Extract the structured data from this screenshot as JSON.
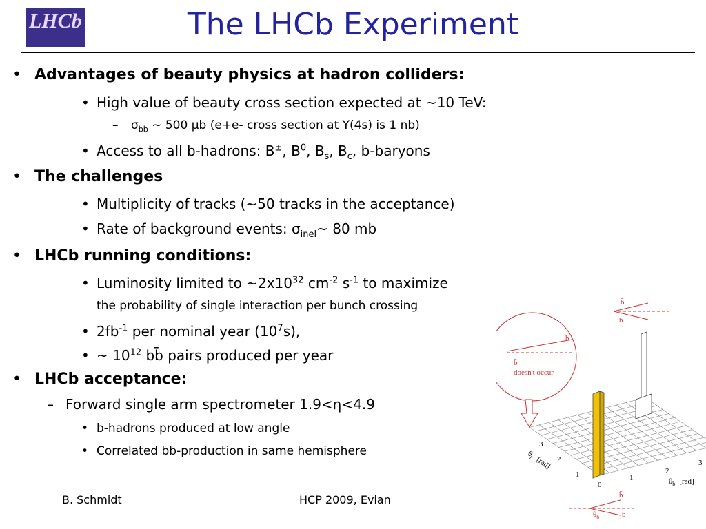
{
  "logo": "LHCb",
  "title": "The LHCb Experiment",
  "items": [
    {
      "level": 0,
      "marker": "•",
      "runs": [
        "Advantages of beauty physics at hadron colliders:"
      ]
    },
    {
      "level": 1,
      "marker": "•",
      "runs": [
        "High value of beauty cross section expected at ~10 TeV:"
      ]
    },
    {
      "level": 2,
      "marker": "–",
      "runs": [
        "σ",
        {
          "sub": "bb"
        },
        " ~ 500 μb (e+e- cross section at Υ(4s) is 1 nb)"
      ]
    },
    {
      "level": 1,
      "marker": "•",
      "runs": [
        "Access to all b-hadrons: ",
        "B",
        {
          "sup": "±"
        },
        ", B",
        {
          "sup": "0"
        },
        ", B",
        {
          "sub": "s"
        },
        ", B",
        {
          "sub": "c"
        },
        ", b-baryons"
      ]
    },
    {
      "level": 0,
      "marker": "•",
      "runs": [
        "The challenges"
      ]
    },
    {
      "level": 1,
      "marker": "•",
      "runs": [
        "Multiplicity of tracks (~50 tracks in the acceptance)"
      ]
    },
    {
      "level": 1,
      "marker": "•",
      "runs": [
        "Rate of background events: σ",
        {
          "sub": "inel"
        },
        "~ 80 mb"
      ]
    },
    {
      "level": 0,
      "marker": "•",
      "runs": [
        "LHCb running conditions:"
      ]
    },
    {
      "level": 1,
      "marker": "•",
      "runs": [
        "Luminosity limited to ~2x10",
        {
          "sup": "32"
        },
        " cm",
        {
          "sup": "-2"
        },
        " s",
        {
          "sup": "-1"
        },
        " to maximize"
      ]
    },
    {
      "level": 1,
      "runs": [
        "the probability of single interaction per bunch crossing"
      ]
    },
    {
      "level": 1,
      "marker": "•",
      "runs": [
        "2fb",
        {
          "sup": "-1"
        },
        " per nominal year (10",
        {
          "sup": "7"
        },
        "s),"
      ]
    },
    {
      "level": 1,
      "marker": "•",
      "runs": [
        "~ 10",
        {
          "sup": "12"
        },
        " bb̄ pairs produced per year"
      ]
    },
    {
      "level": 0,
      "marker": "•",
      "runs": [
        "LHCb acceptance:"
      ]
    },
    {
      "level": 1,
      "marker": "–",
      "runs": [
        "Forward single arm spectrometer 1.9<η<4.9"
      ]
    },
    {
      "level": 2,
      "marker": "•",
      "runs": [
        "b-hadrons produced at low angle"
      ]
    },
    {
      "level": 2,
      "marker": "•",
      "runs": [
        "Correlated bb-production in same hemisphere"
      ]
    }
  ],
  "figure": {
    "b": "b",
    "bbar": "b̄",
    "note": "doesn't occur",
    "theta": "θ",
    "theta_sub": "b",
    "unit": "[rad]",
    "axis_ticks": [
      "0",
      "1",
      "2",
      "3"
    ]
  },
  "footer": {
    "author": "B. Schmidt",
    "event": "HCP 2009,  Evian"
  }
}
